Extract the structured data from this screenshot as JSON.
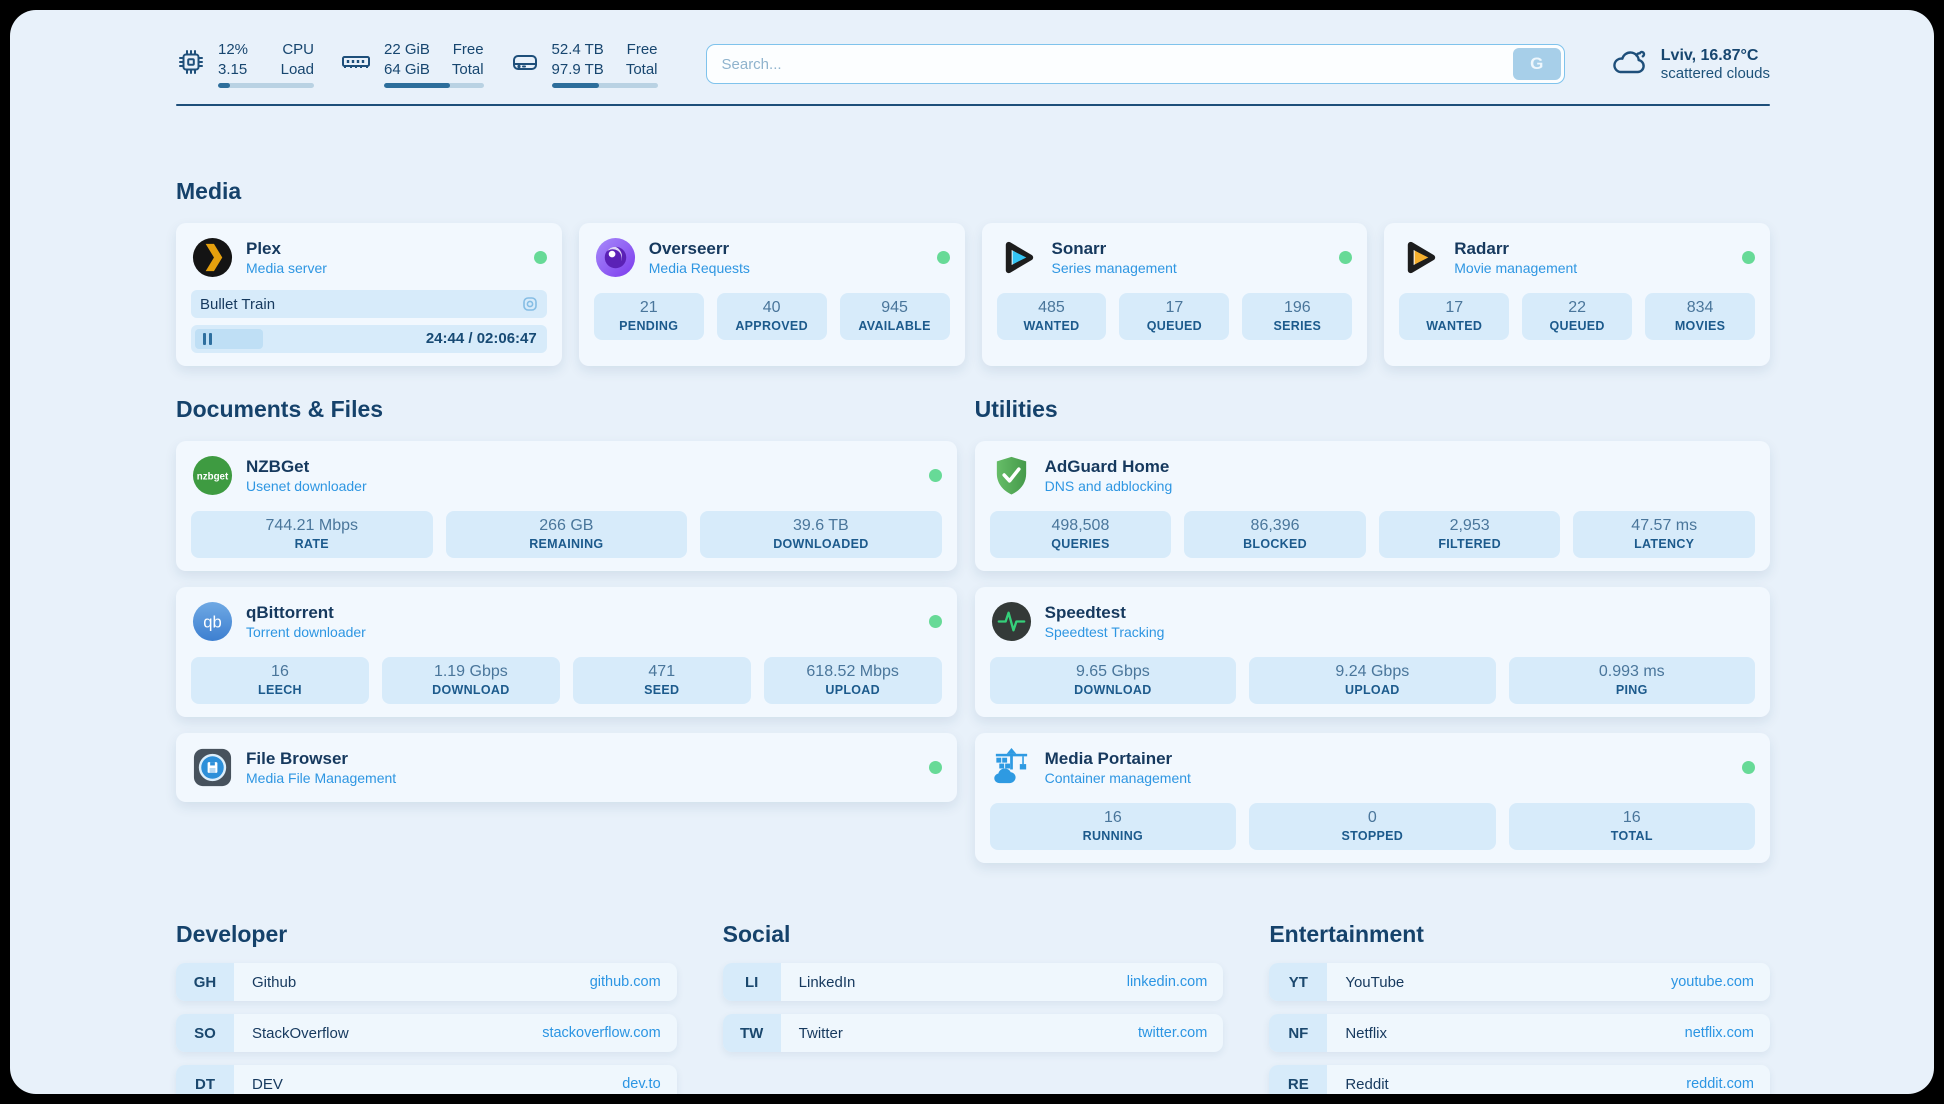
{
  "colors": {
    "page_bg": "#e8f1fa",
    "card_bg": "#f2f8fe",
    "stat_bg": "#d7ebfa",
    "text_primary": "#16395e",
    "accent_blue": "#2e96e2",
    "status_online": "#67da97",
    "progress_fill": "#2d6e9b",
    "plex_brand": "#e5a00d"
  },
  "topbar": {
    "resources": [
      {
        "icon": "cpu-icon",
        "values": [
          "12%",
          "3.15"
        ],
        "labels": [
          "CPU",
          "Load"
        ],
        "progress": "12%"
      },
      {
        "icon": "ram-icon",
        "values": [
          "22 GiB",
          "64 GiB"
        ],
        "labels": [
          "Free",
          "Total"
        ],
        "progress": "66%"
      },
      {
        "icon": "disk-icon",
        "values": [
          "52.4 TB",
          "97.9 TB"
        ],
        "labels": [
          "Free",
          "Total"
        ],
        "progress": "45%"
      }
    ],
    "search": {
      "placeholder": "Search...",
      "button_label": "G"
    },
    "weather": {
      "location": "Lviv, 16.87°C",
      "condition": "scattered clouds"
    }
  },
  "sections": {
    "media": {
      "title": "Media",
      "cards": [
        {
          "name": "Plex",
          "desc": "Media server",
          "online": true,
          "now_playing": {
            "title": "Bullet Train",
            "time_display": "24:44 / 02:06:47",
            "progress": "19%"
          }
        },
        {
          "name": "Overseerr",
          "desc": "Media Requests",
          "online": true,
          "stats": [
            {
              "value": "21",
              "label": "PENDING"
            },
            {
              "value": "40",
              "label": "APPROVED"
            },
            {
              "value": "945",
              "label": "AVAILABLE"
            }
          ]
        },
        {
          "name": "Sonarr",
          "desc": "Series management",
          "online": true,
          "stats": [
            {
              "value": "485",
              "label": "WANTED"
            },
            {
              "value": "17",
              "label": "QUEUED"
            },
            {
              "value": "196",
              "label": "SERIES"
            }
          ]
        },
        {
          "name": "Radarr",
          "desc": "Movie management",
          "online": true,
          "stats": [
            {
              "value": "17",
              "label": "WANTED"
            },
            {
              "value": "22",
              "label": "QUEUED"
            },
            {
              "value": "834",
              "label": "MOVIES"
            }
          ]
        }
      ]
    },
    "documents": {
      "title": "Documents & Files",
      "cards": [
        {
          "name": "NZBGet",
          "desc": "Usenet downloader",
          "online": true,
          "stats": [
            {
              "value": "744.21 Mbps",
              "label": "RATE"
            },
            {
              "value": "266 GB",
              "label": "REMAINING"
            },
            {
              "value": "39.6 TB",
              "label": "DOWNLOADED"
            }
          ]
        },
        {
          "name": "qBittorrent",
          "desc": "Torrent downloader",
          "online": true,
          "stats": [
            {
              "value": "16",
              "label": "LEECH"
            },
            {
              "value": "1.19 Gbps",
              "label": "DOWNLOAD"
            },
            {
              "value": "471",
              "label": "SEED"
            },
            {
              "value": "618.52 Mbps",
              "label": "UPLOAD"
            }
          ]
        },
        {
          "name": "File Browser",
          "desc": "Media File Management",
          "online": true,
          "stats": []
        }
      ]
    },
    "utilities": {
      "title": "Utilities",
      "cards": [
        {
          "name": "AdGuard Home",
          "desc": "DNS and adblocking",
          "online": false,
          "stats": [
            {
              "value": "498,508",
              "label": "QUERIES"
            },
            {
              "value": "86,396",
              "label": "BLOCKED"
            },
            {
              "value": "2,953",
              "label": "FILTERED"
            },
            {
              "value": "47.57 ms",
              "label": "LATENCY"
            }
          ]
        },
        {
          "name": "Speedtest",
          "desc": "Speedtest Tracking",
          "online": false,
          "stats": [
            {
              "value": "9.65 Gbps",
              "label": "DOWNLOAD"
            },
            {
              "value": "9.24 Gbps",
              "label": "UPLOAD"
            },
            {
              "value": "0.993 ms",
              "label": "PING"
            }
          ]
        },
        {
          "name": "Media Portainer",
          "desc": "Container management",
          "online": true,
          "stats": [
            {
              "value": "16",
              "label": "RUNNING"
            },
            {
              "value": "0",
              "label": "STOPPED"
            },
            {
              "value": "16",
              "label": "TOTAL"
            }
          ]
        }
      ]
    }
  },
  "bookmarks": [
    {
      "title": "Developer",
      "items": [
        {
          "abbr": "GH",
          "name": "Github",
          "url": "github.com"
        },
        {
          "abbr": "SO",
          "name": "StackOverflow",
          "url": "stackoverflow.com"
        },
        {
          "abbr": "DT",
          "name": "DEV",
          "url": "dev.to"
        }
      ]
    },
    {
      "title": "Social",
      "items": [
        {
          "abbr": "LI",
          "name": "LinkedIn",
          "url": "linkedin.com"
        },
        {
          "abbr": "TW",
          "name": "Twitter",
          "url": "twitter.com"
        }
      ]
    },
    {
      "title": "Entertainment",
      "items": [
        {
          "abbr": "YT",
          "name": "YouTube",
          "url": "youtube.com"
        },
        {
          "abbr": "NF",
          "name": "Netflix",
          "url": "netflix.com"
        },
        {
          "abbr": "RE",
          "name": "Reddit",
          "url": "reddit.com"
        }
      ]
    }
  ]
}
